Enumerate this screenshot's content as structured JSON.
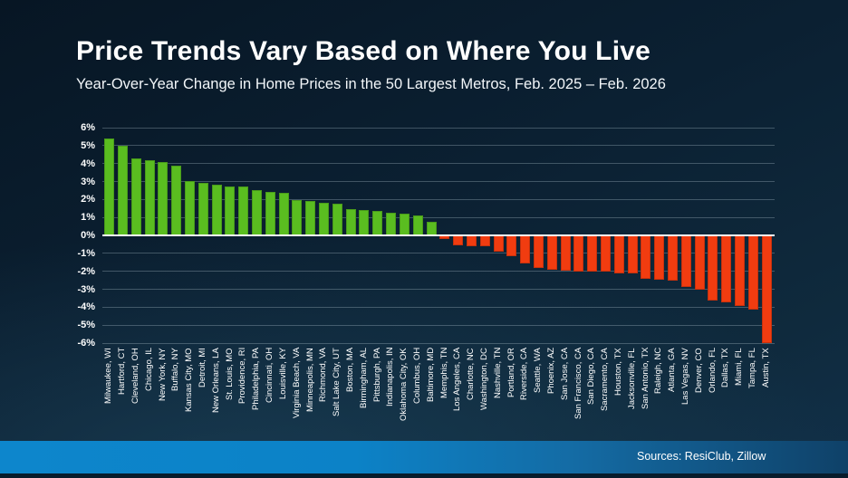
{
  "slide": {
    "title": "Price Trends Vary Based on Where You Live",
    "subtitle": "Year-Over-Year Change in Home Prices in the 50 Largest Metros, Feb. 2025 – Feb. 2026",
    "source_label": "Sources: ResiClub, Zillow"
  },
  "colors": {
    "positive_bar": "#5abd20",
    "negative_bar": "#f13c10",
    "zero_line": "#ffffff",
    "gridline": "rgba(190,208,219,0.30)",
    "footer_blue_left": "#0d86cc",
    "footer_blue_right": "#0f4168",
    "background_dark": "#0b2032"
  },
  "chart_data": {
    "type": "bar",
    "title": "Price Trends Vary Based on Where You Live",
    "subtitle": "Year-Over-Year Change in Home Prices in the 50 Largest Metros, Feb. 2025 – Feb. 2026",
    "xlabel": "",
    "ylabel": "",
    "ylim": [
      -6,
      6
    ],
    "yticks": [
      6,
      5,
      4,
      3,
      2,
      1,
      0,
      -1,
      -2,
      -3,
      -4,
      -5,
      -6
    ],
    "ytick_labels": [
      "6%",
      "5%",
      "4%",
      "3%",
      "2%",
      "1%",
      "0%",
      "-1%",
      "-2%",
      "-3%",
      "-4%",
      "-5%",
      "-6%"
    ],
    "grid": true,
    "legend": false,
    "positive_color": "#5abd20",
    "negative_color": "#f13c10",
    "categories": [
      "Milwaukee, WI",
      "Hartford, CT",
      "Cleveland, OH",
      "Chicago, IL",
      "New York, NY",
      "Buffalo, NY",
      "Kansas City, MO",
      "Detroit, MI",
      "New Orleans, LA",
      "St. Louis, MO",
      "Providence, RI",
      "Philadelphia, PA",
      "Cincinnati, OH",
      "Louisville, KY",
      "Virginia Beach, VA",
      "Minneapolis, MN",
      "Richmond, VA",
      "Salt Lake City, UT",
      "Boston, MA",
      "Birmingham, AL",
      "Pittsburgh, PA",
      "Indianapolis, IN",
      "Oklahoma City, OK",
      "Columbus, OH",
      "Baltimore, MD",
      "Memphis, TN",
      "Los Angeles, CA",
      "Charlotte, NC",
      "Washington, DC",
      "Nashville, TN",
      "Portland, OR",
      "Riverside, CA",
      "Seattle, WA",
      "Phoenix, AZ",
      "San Jose, CA",
      "San Francisco, CA",
      "San Diego, CA",
      "Sacramento, CA",
      "Houston, TX",
      "Jacksonville, FL",
      "San Antonio, TX",
      "Raleigh, NC",
      "Atlanta, GA",
      "Las Vegas, NV",
      "Denver, CO",
      "Orlando, FL",
      "Dallas, TX",
      "Miami, FL",
      "Tampa, FL",
      "Austin, TX"
    ],
    "values": [
      5.4,
      5.0,
      4.3,
      4.2,
      4.1,
      3.9,
      3.05,
      2.9,
      2.8,
      2.7,
      2.7,
      2.5,
      2.4,
      2.35,
      1.95,
      1.9,
      1.8,
      1.75,
      1.45,
      1.4,
      1.35,
      1.25,
      1.2,
      1.1,
      0.75,
      -0.2,
      -0.55,
      -0.6,
      -0.6,
      -0.9,
      -1.15,
      -1.55,
      -1.8,
      -1.9,
      -1.95,
      -2.0,
      -2.0,
      -2.0,
      -2.1,
      -2.1,
      -2.4,
      -2.45,
      -2.5,
      -2.85,
      -3.05,
      -3.65,
      -3.75,
      -3.95,
      -4.15,
      -6.0
    ]
  }
}
